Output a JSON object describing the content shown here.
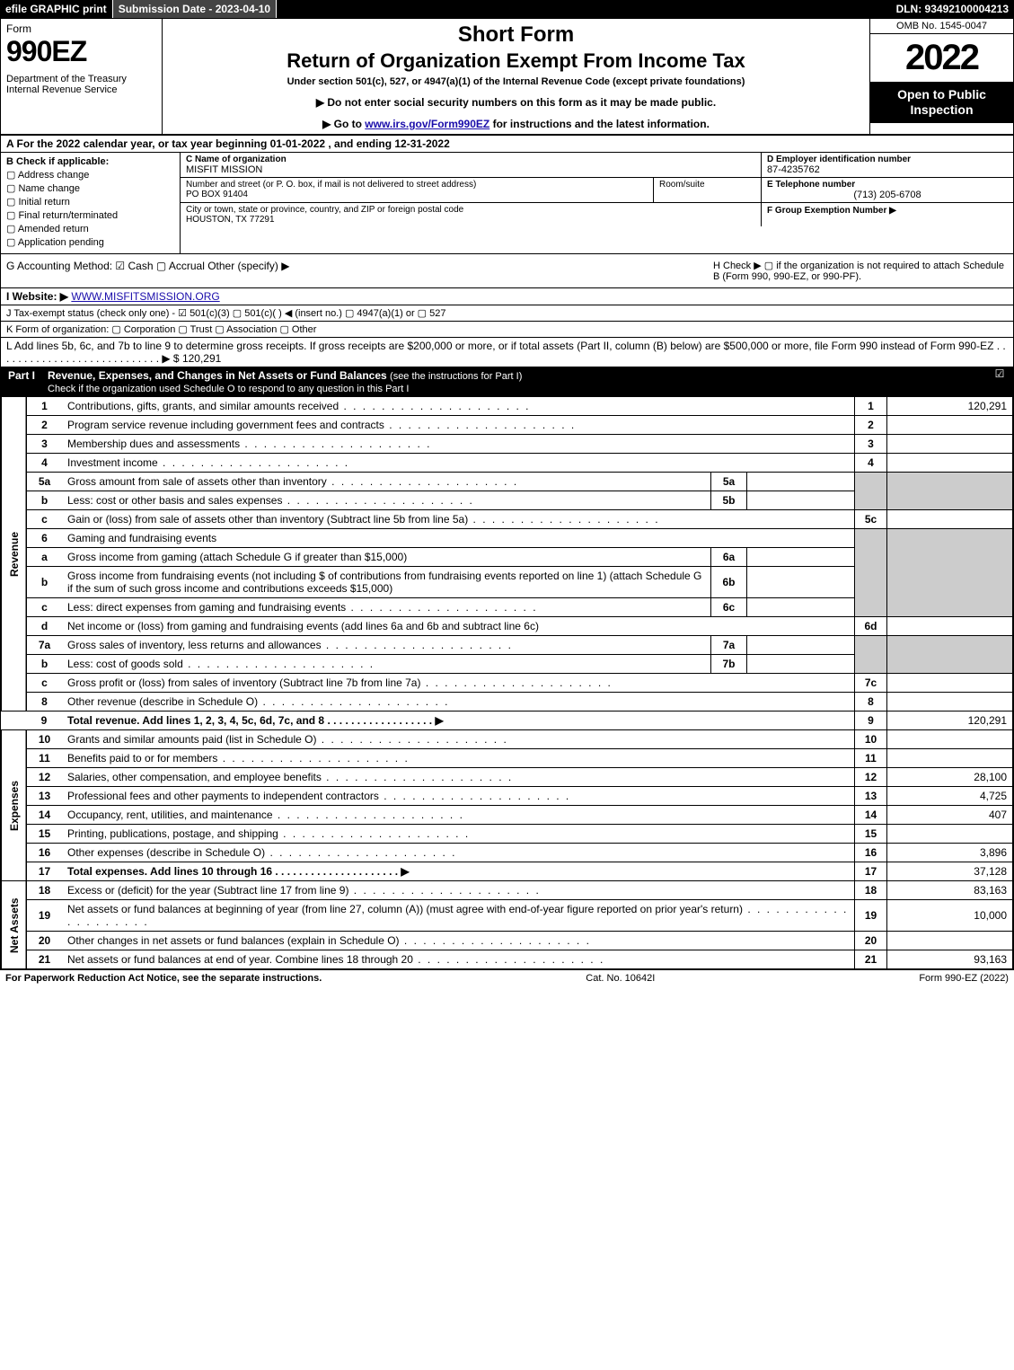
{
  "topbar": {
    "efile": "efile GRAPHIC print",
    "submission": "Submission Date - 2023-04-10",
    "dln": "DLN: 93492100004213"
  },
  "header": {
    "form_word": "Form",
    "form_num": "990EZ",
    "dept": "Department of the Treasury\nInternal Revenue Service",
    "short": "Short Form",
    "title": "Return of Organization Exempt From Income Tax",
    "under": "Under section 501(c), 527, or 4947(a)(1) of the Internal Revenue Code (except private foundations)",
    "note1": "▶ Do not enter social security numbers on this form as it may be made public.",
    "note2_pre": "▶ Go to ",
    "note2_link": "www.irs.gov/Form990EZ",
    "note2_post": " for instructions and the latest information.",
    "omb": "OMB No. 1545-0047",
    "year": "2022",
    "inspect": "Open to Public Inspection"
  },
  "line_a": "A  For the 2022 calendar year, or tax year beginning 01-01-2022 , and ending 12-31-2022",
  "sec_b": {
    "label": "B  Check if applicable:",
    "opts": [
      "Address change",
      "Name change",
      "Initial return",
      "Final return/terminated",
      "Amended return",
      "Application pending"
    ]
  },
  "sec_c": {
    "label": "C Name of organization",
    "value": "MISFIT MISSION"
  },
  "addr": {
    "street_label": "Number and street (or P. O. box, if mail is not delivered to street address)",
    "street": "PO BOX 91404",
    "room_label": "Room/suite",
    "room": "",
    "city_label": "City or town, state or province, country, and ZIP or foreign postal code",
    "city": "HOUSTON, TX  77291"
  },
  "sec_d": {
    "label": "D Employer identification number",
    "value": "87-4235762"
  },
  "sec_e": {
    "label": "E Telephone number",
    "value": "(713) 205-6708"
  },
  "sec_f": {
    "label": "F Group Exemption Number  ▶",
    "value": ""
  },
  "sec_g": "G Accounting Method:   ☑ Cash  ▢ Accrual   Other (specify) ▶",
  "sec_h": "H  Check ▶  ▢ if the organization is not required to attach Schedule B (Form 990, 990-EZ, or 990-PF).",
  "sec_i_label": "I Website: ▶",
  "sec_i_link": "WWW.MISFITSMISSION.ORG",
  "sec_j": "J Tax-exempt status (check only one) - ☑ 501(c)(3) ▢ 501(c)(  ) ◀ (insert no.) ▢ 4947(a)(1) or ▢ 527",
  "sec_k": "K Form of organization:  ▢ Corporation  ▢ Trust  ▢ Association  ▢ Other",
  "sec_l": "L Add lines 5b, 6c, and 7b to line 9 to determine gross receipts. If gross receipts are $200,000 or more, or if total assets (Part II, column (B) below) are $500,000 or more, file Form 990 instead of Form 990-EZ . . . . . . . . . . . . . . . . . . . . . . . . . . . . ▶ $ 120,291",
  "part1": {
    "num": "Part I",
    "title": "Revenue, Expenses, and Changes in Net Assets or Fund Balances ",
    "sub": "(see the instructions for Part I)",
    "check_note": "Check if the organization used Schedule O to respond to any question in this Part I"
  },
  "rows": {
    "r1": {
      "n": "1",
      "desc": "Contributions, gifts, grants, and similar amounts received",
      "val": "120,291"
    },
    "r2": {
      "n": "2",
      "desc": "Program service revenue including government fees and contracts",
      "val": ""
    },
    "r3": {
      "n": "3",
      "desc": "Membership dues and assessments",
      "val": ""
    },
    "r4": {
      "n": "4",
      "desc": "Investment income",
      "val": ""
    },
    "r5a": {
      "n": "5a",
      "desc": "Gross amount from sale of assets other than inventory",
      "inn": "5a",
      "inv": ""
    },
    "r5b": {
      "n": "b",
      "desc": "Less: cost or other basis and sales expenses",
      "inn": "5b",
      "inv": ""
    },
    "r5c": {
      "n": "c",
      "desc": "Gain or (loss) from sale of assets other than inventory (Subtract line 5b from line 5a)",
      "num": "5c",
      "val": ""
    },
    "r6": {
      "n": "6",
      "desc": "Gaming and fundraising events"
    },
    "r6a": {
      "n": "a",
      "desc": "Gross income from gaming (attach Schedule G if greater than $15,000)",
      "inn": "6a",
      "inv": ""
    },
    "r6b": {
      "n": "b",
      "desc": "Gross income from fundraising events (not including $                     of contributions from fundraising events reported on line 1) (attach Schedule G if the sum of such gross income and contributions exceeds $15,000)",
      "inn": "6b",
      "inv": ""
    },
    "r6c": {
      "n": "c",
      "desc": "Less: direct expenses from gaming and fundraising events",
      "inn": "6c",
      "inv": ""
    },
    "r6d": {
      "n": "d",
      "desc": "Net income or (loss) from gaming and fundraising events (add lines 6a and 6b and subtract line 6c)",
      "num": "6d",
      "val": ""
    },
    "r7a": {
      "n": "7a",
      "desc": "Gross sales of inventory, less returns and allowances",
      "inn": "7a",
      "inv": ""
    },
    "r7b": {
      "n": "b",
      "desc": "Less: cost of goods sold",
      "inn": "7b",
      "inv": ""
    },
    "r7c": {
      "n": "c",
      "desc": "Gross profit or (loss) from sales of inventory (Subtract line 7b from line 7a)",
      "num": "7c",
      "val": ""
    },
    "r8": {
      "n": "8",
      "desc": "Other revenue (describe in Schedule O)",
      "val": ""
    },
    "r9": {
      "n": "9",
      "desc": "Total revenue. Add lines 1, 2, 3, 4, 5c, 6d, 7c, and 8   . . . . . . . . . . . . . . . . . .  ▶",
      "val": "120,291"
    },
    "r10": {
      "n": "10",
      "desc": "Grants and similar amounts paid (list in Schedule O)",
      "val": ""
    },
    "r11": {
      "n": "11",
      "desc": "Benefits paid to or for members",
      "val": ""
    },
    "r12": {
      "n": "12",
      "desc": "Salaries, other compensation, and employee benefits",
      "val": "28,100"
    },
    "r13": {
      "n": "13",
      "desc": "Professional fees and other payments to independent contractors",
      "val": "4,725"
    },
    "r14": {
      "n": "14",
      "desc": "Occupancy, rent, utilities, and maintenance",
      "val": "407"
    },
    "r15": {
      "n": "15",
      "desc": "Printing, publications, postage, and shipping",
      "val": ""
    },
    "r16": {
      "n": "16",
      "desc": "Other expenses (describe in Schedule O)",
      "val": "3,896"
    },
    "r17": {
      "n": "17",
      "desc": "Total expenses. Add lines 10 through 16   . . . . . . . . . . . . . . . . . . . . .  ▶",
      "val": "37,128"
    },
    "r18": {
      "n": "18",
      "desc": "Excess or (deficit) for the year (Subtract line 17 from line 9)",
      "val": "83,163"
    },
    "r19": {
      "n": "19",
      "desc": "Net assets or fund balances at beginning of year (from line 27, column (A)) (must agree with end-of-year figure reported on prior year's return)",
      "val": "10,000"
    },
    "r20": {
      "n": "20",
      "desc": "Other changes in net assets or fund balances (explain in Schedule O)",
      "val": ""
    },
    "r21": {
      "n": "21",
      "desc": "Net assets or fund balances at end of year. Combine lines 18 through 20",
      "val": "93,163"
    }
  },
  "side": {
    "rev": "Revenue",
    "exp": "Expenses",
    "na": "Net Assets"
  },
  "footer": {
    "left": "For Paperwork Reduction Act Notice, see the separate instructions.",
    "mid": "Cat. No. 10642I",
    "right": "Form 990-EZ (2022)"
  }
}
